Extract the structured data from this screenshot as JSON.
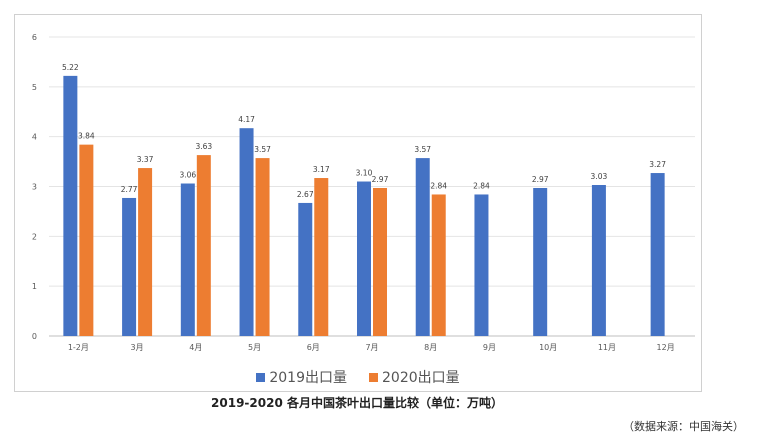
{
  "chart_data": {
    "type": "bar",
    "categories": [
      "1-2月",
      "3月",
      "4月",
      "5月",
      "6月",
      "7月",
      "8月",
      "9月",
      "10月",
      "11月",
      "12月"
    ],
    "series": [
      {
        "name": "2019出口量",
        "color": "#4472c4",
        "values": [
          5.22,
          2.77,
          3.06,
          4.17,
          2.67,
          3.1,
          3.57,
          2.84,
          2.97,
          3.03,
          3.27
        ]
      },
      {
        "name": "2020出口量",
        "color": "#ed7d31",
        "values": [
          3.84,
          3.37,
          3.63,
          3.57,
          3.17,
          2.97,
          2.84,
          null,
          null,
          null,
          null
        ]
      }
    ],
    "data_labels": [
      [
        "5.22",
        "2.77",
        "3.06",
        "4.17",
        "2.67",
        "3.10",
        "3.57",
        "2.84",
        "2.97",
        "3.03",
        "3.27"
      ],
      [
        "3.84",
        "3.37",
        "3.63",
        "3.57",
        "3.17",
        "2.97",
        "2.84",
        null,
        null,
        null,
        null
      ]
    ],
    "ylim": [
      0,
      6
    ],
    "yticks": [
      "0",
      "1",
      "2",
      "3",
      "4",
      "5",
      "6"
    ],
    "grid": true,
    "legend_position": "bottom",
    "title": "",
    "xlabel": "",
    "ylabel": ""
  },
  "caption": "2019-2020 各月中国茶叶出口量比较（单位：万吨）",
  "source": "（数据来源：中国海关）"
}
